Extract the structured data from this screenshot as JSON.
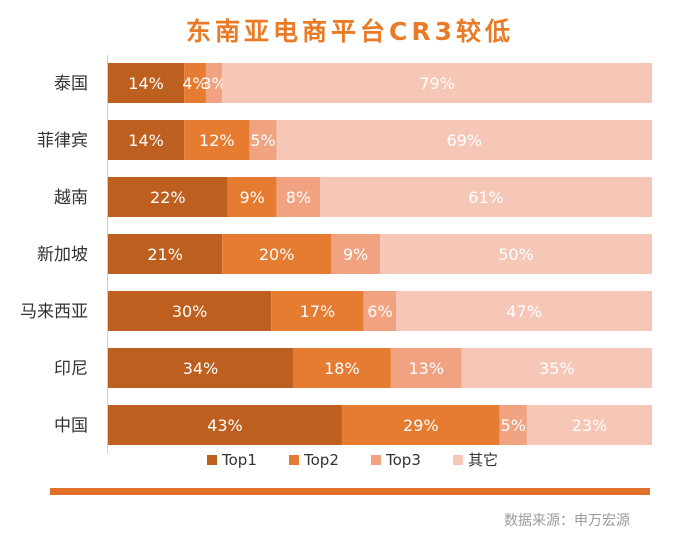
{
  "chart_data": {
    "type": "bar",
    "title": "东南亚电商平台CR3较低",
    "orientation": "horizontal",
    "stacked": true,
    "normalized": true,
    "categories": [
      "泰国",
      "菲律宾",
      "越南",
      "新加坡",
      "马来西亚",
      "印尼",
      "中国"
    ],
    "series": [
      {
        "name": "Top1",
        "color": "#BD5F1E",
        "values": [
          14,
          14,
          22,
          21,
          30,
          34,
          43
        ]
      },
      {
        "name": "Top2",
        "color": "#E57C31",
        "values": [
          4,
          12,
          9,
          20,
          17,
          18,
          29
        ]
      },
      {
        "name": "Top3",
        "color": "#F0A281",
        "values": [
          3,
          5,
          8,
          9,
          6,
          13,
          5
        ]
      },
      {
        "name": "其它",
        "color": "#F6C6B6",
        "values": [
          79,
          69,
          61,
          50,
          47,
          35,
          23
        ]
      }
    ],
    "value_suffix": "%",
    "legend": "bottom",
    "grid": false
  },
  "source_text": "数据来源：申万宏源"
}
